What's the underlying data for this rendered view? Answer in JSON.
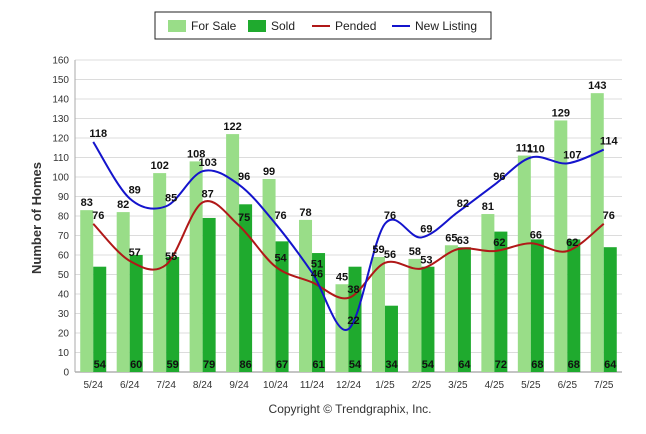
{
  "chart_data": {
    "type": "bar",
    "categories": [
      "5/24",
      "6/24",
      "7/24",
      "8/24",
      "9/24",
      "10/24",
      "11/24",
      "12/24",
      "1/25",
      "2/25",
      "3/25",
      "4/25",
      "5/25",
      "6/25",
      "7/25"
    ],
    "series": [
      {
        "name": "For Sale",
        "kind": "bar",
        "color": "#99dd88",
        "values": [
          83,
          82,
          102,
          108,
          122,
          99,
          78,
          45,
          59,
          58,
          65,
          81,
          111,
          129,
          143
        ]
      },
      {
        "name": "Sold",
        "kind": "bar",
        "color": "#1faa2e",
        "values": [
          54,
          60,
          59,
          79,
          86,
          67,
          61,
          54,
          34,
          54,
          64,
          72,
          68,
          68,
          64
        ]
      },
      {
        "name": "Pended",
        "kind": "line",
        "color": "#b01818",
        "values": [
          76,
          57,
          55,
          87,
          75,
          54,
          46,
          38,
          56,
          53,
          63,
          62,
          66,
          62,
          76
        ]
      },
      {
        "name": "New Listing",
        "kind": "line",
        "color": "#1414cc",
        "values": [
          118,
          89,
          85,
          103,
          96,
          76,
          51,
          22,
          76,
          69,
          82,
          96,
          110,
          107,
          114
        ]
      }
    ],
    "ylabel": "Number of Homes",
    "yticks": [
      "0",
      "10",
      "20",
      "30",
      "40",
      "50",
      "60",
      "70",
      "80",
      "90",
      "100",
      "110",
      "120",
      "130",
      "140",
      "150",
      "160"
    ],
    "ylim": [
      0,
      160
    ],
    "grid": true,
    "legend_position": "top-center",
    "footer": "Copyright © Trendgraphix, Inc."
  }
}
